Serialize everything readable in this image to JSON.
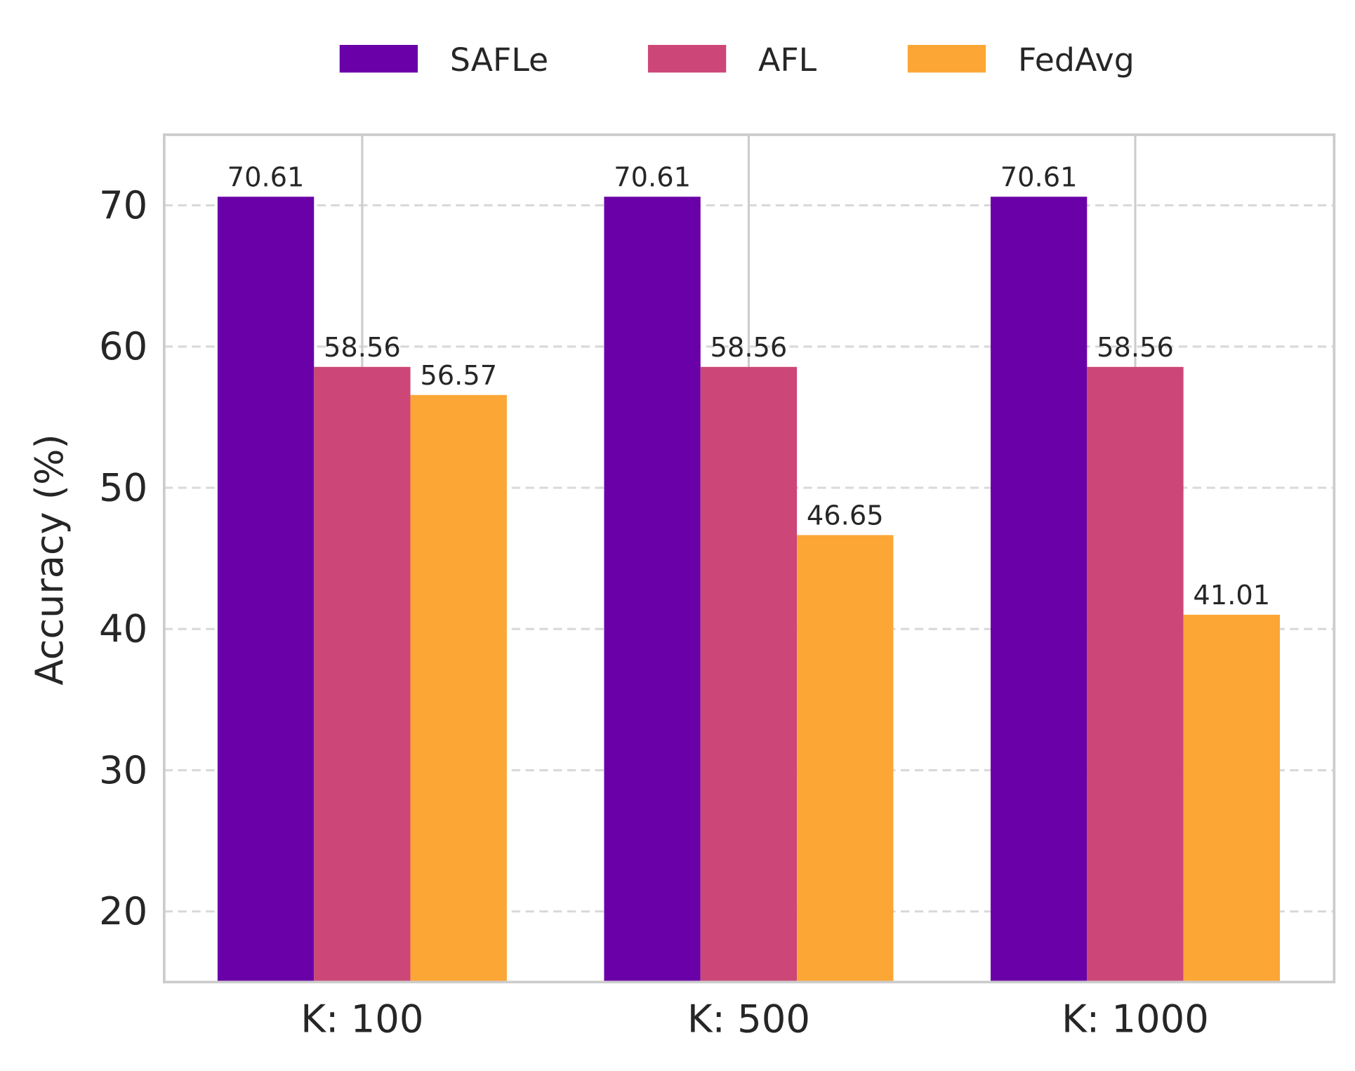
{
  "chart_data": {
    "type": "bar",
    "title": "",
    "xlabel": "",
    "ylabel": "Accuracy (%)",
    "categories": [
      "K: 100",
      "K: 500",
      "K: 1000"
    ],
    "series": [
      {
        "name": "SAFLe",
        "color": "#6a00a8",
        "values": [
          70.61,
          70.61,
          70.61
        ]
      },
      {
        "name": "AFL",
        "color": "#cc4778",
        "values": [
          58.56,
          58.56,
          58.56
        ]
      },
      {
        "name": "FedAvg",
        "color": "#fca636",
        "values": [
          56.57,
          46.65,
          41.01
        ]
      }
    ],
    "data_labels": [
      [
        "70.61",
        "70.61",
        "70.61"
      ],
      [
        "58.56",
        "58.56",
        "58.56"
      ],
      [
        "56.57",
        "46.65",
        "41.01"
      ]
    ],
    "ylim": [
      15,
      75
    ],
    "yticks": [
      20,
      30,
      40,
      50,
      60,
      70
    ],
    "grid": "y dashed, x solid",
    "legend": "top-center"
  }
}
